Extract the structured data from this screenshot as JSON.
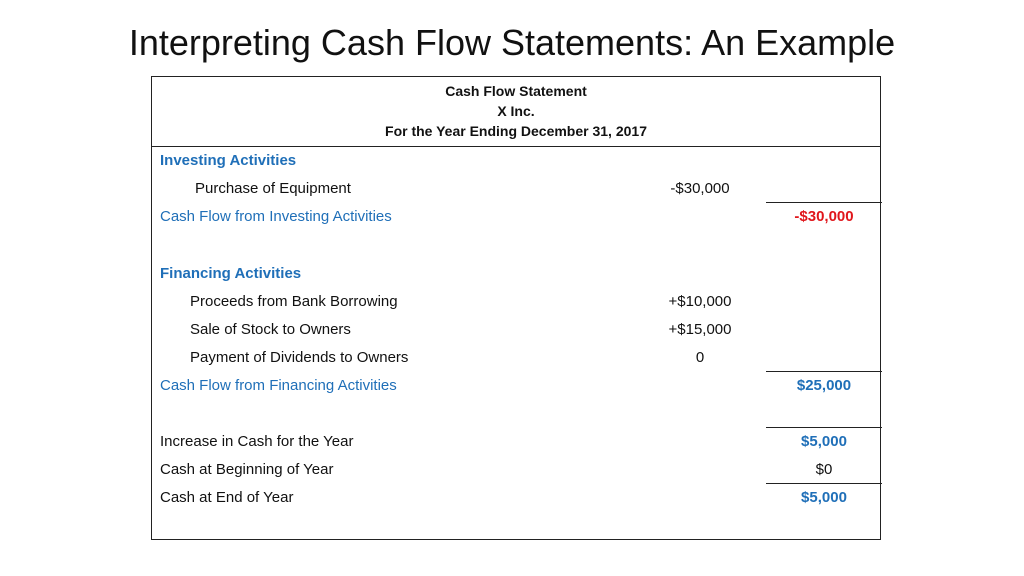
{
  "title": "Interpreting Cash Flow Statements: An Example",
  "statement": {
    "header": [
      "Cash Flow Statement",
      "X Inc.",
      "For the Year Ending December 31, 2017"
    ],
    "investing": {
      "heading": "Investing Activities",
      "items": [
        {
          "label": "Purchase of Equipment",
          "amount": "-$30,000"
        }
      ],
      "total_label": "Cash Flow from Investing Activities",
      "total": "-$30,000"
    },
    "financing": {
      "heading": "Financing Activities",
      "items": [
        {
          "label": "Proceeds from Bank Borrowing",
          "amount": "+$10,000"
        },
        {
          "label": "Sale of Stock to Owners",
          "amount": "+$15,000"
        },
        {
          "label": "Payment of Dividends to Owners",
          "amount": "0"
        }
      ],
      "total_label": "Cash Flow from Financing Activities",
      "total": "$25,000"
    },
    "summary": [
      {
        "label": "Increase in Cash for the Year",
        "value": "$5,000"
      },
      {
        "label": "Cash at Beginning of Year",
        "value": "$0"
      },
      {
        "label": "Cash at End of Year",
        "value": "$5,000"
      }
    ]
  },
  "colors": {
    "heading_blue": "#1f6fb8",
    "negative_red": "#e0161b"
  }
}
